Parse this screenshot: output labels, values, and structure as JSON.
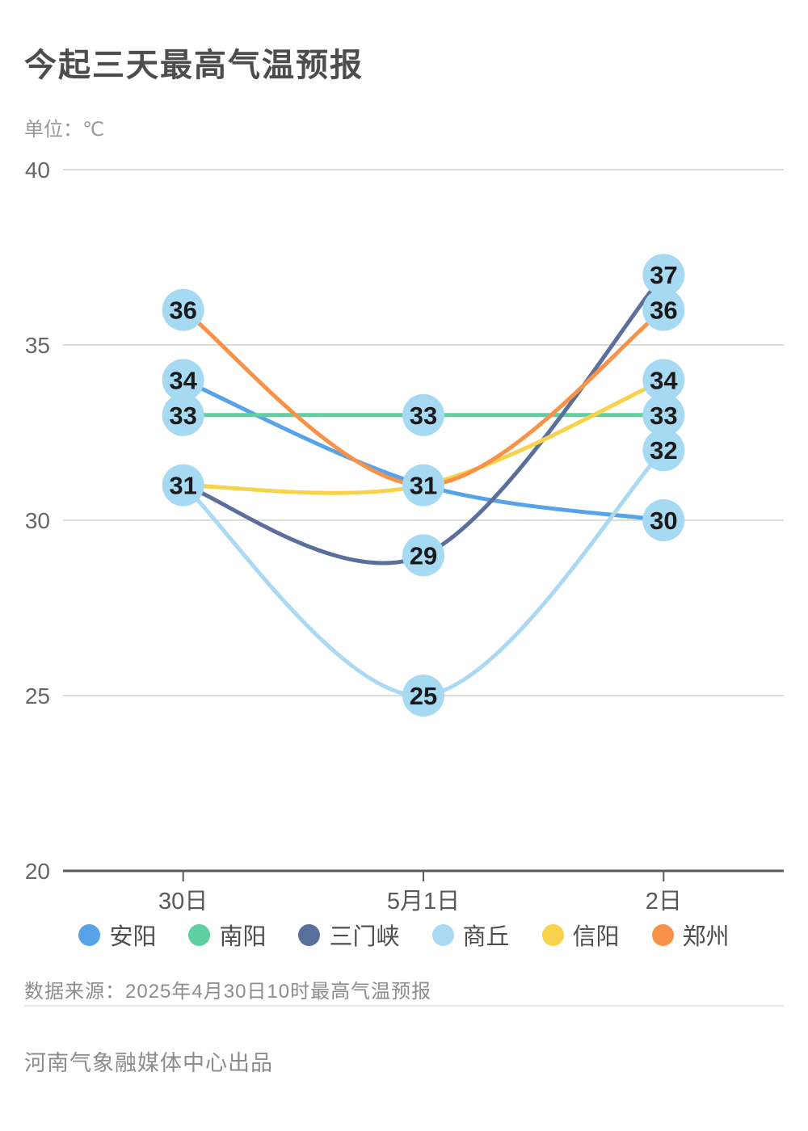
{
  "header": {
    "title": "今起三天最高气温预报",
    "unit": "单位：℃"
  },
  "footer": {
    "source": "数据来源：2025年4月30日10时最高气温预报",
    "producer": "河南气象融媒体中心出品"
  },
  "colors": {
    "marker_fill": "#a6d9f2",
    "marker_text": "#1a1a1a",
    "gridline": "#dcdcdc",
    "axis_line": "#595959",
    "y_tick_text": "#666666",
    "x_tick_text": "#595959"
  },
  "chart_data": {
    "type": "line",
    "title": "今起三天最高气温预报",
    "ylabel": "单位：℃",
    "categories": [
      "30日",
      "5月1日",
      "2日"
    ],
    "series": [
      {
        "id": "anyang",
        "name": "安阳",
        "color": "#57a3e9",
        "values": [
          34,
          31,
          30
        ]
      },
      {
        "id": "nanyang",
        "name": "南阳",
        "color": "#5ecfa0",
        "values": [
          33,
          33,
          33
        ]
      },
      {
        "id": "sanmenxia",
        "name": "三门峡",
        "color": "#5a6f9c",
        "values": [
          31,
          29,
          37
        ]
      },
      {
        "id": "shangqiu",
        "name": "商丘",
        "color": "#a9d9f3",
        "values": [
          31,
          25,
          32
        ]
      },
      {
        "id": "xinyang",
        "name": "信阳",
        "color": "#f8d24b",
        "values": [
          31,
          31,
          34
        ]
      },
      {
        "id": "zhengzhou",
        "name": "郑州",
        "color": "#f89248",
        "values": [
          36,
          31,
          36
        ]
      }
    ],
    "ylim": [
      20,
      40
    ],
    "yticks": [
      20,
      25,
      30,
      35,
      40
    ],
    "grid": true,
    "legend_position": "bottom",
    "point_labels_visible": true
  }
}
